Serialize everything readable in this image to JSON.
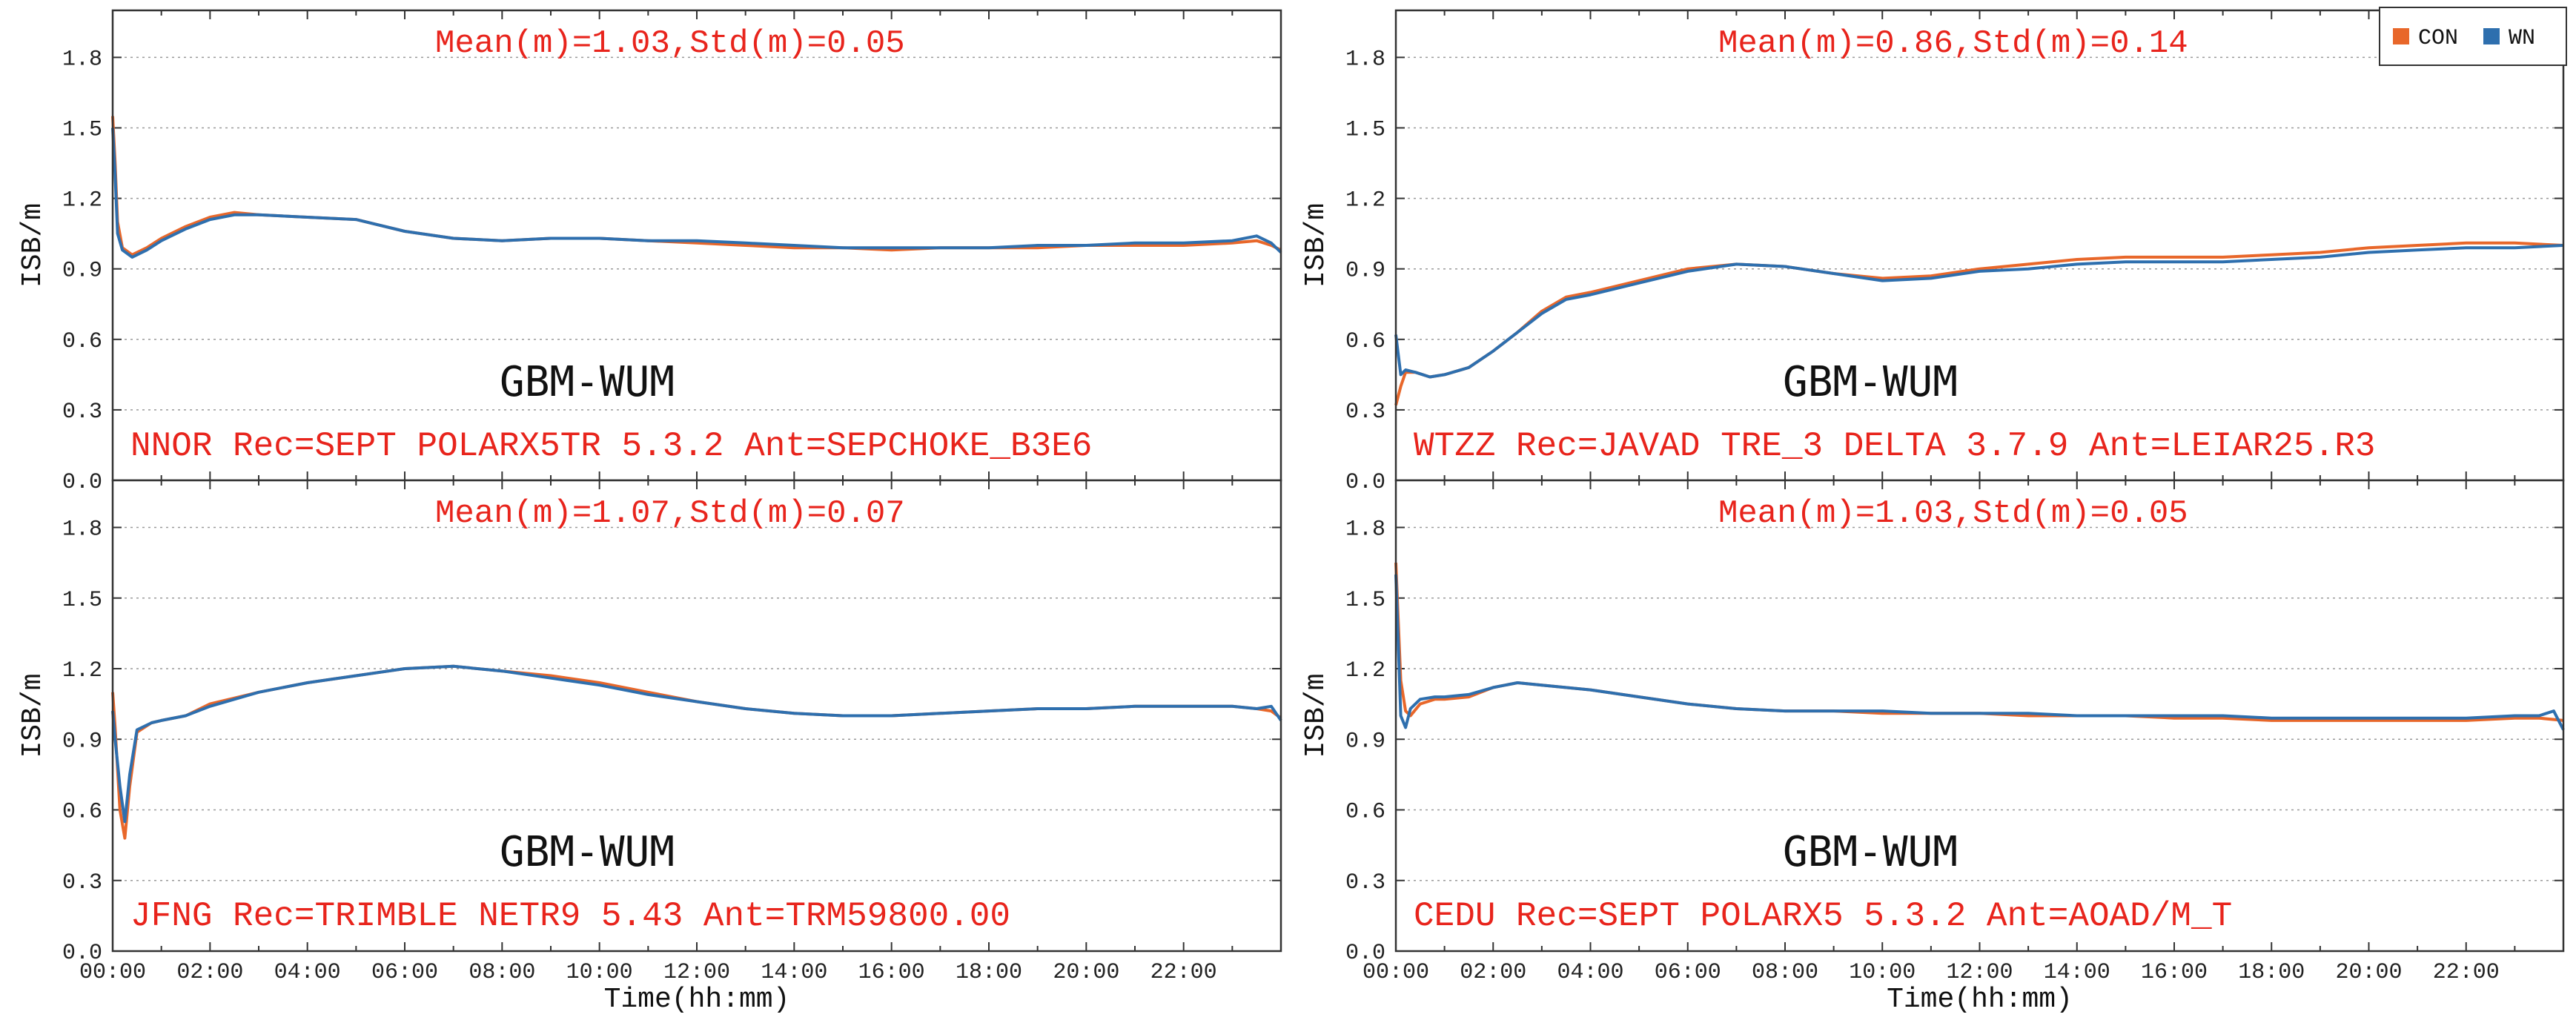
{
  "colors": {
    "con": "#e8672a",
    "wn": "#2e6fae",
    "annotation": "#e8241c"
  },
  "legend": {
    "items": [
      {
        "label": "CON",
        "color": "#e8672a"
      },
      {
        "label": "WN",
        "color": "#2e6fae"
      }
    ],
    "placement": "top-right"
  },
  "chart_data": [
    {
      "type": "line",
      "position": "top-left",
      "station": "NNOR",
      "info": "NNOR Rec=SEPT POLARX5TR 5.3.2 Ant=SEPCHOKE_B3E6",
      "stats": "Mean(m)=1.03,Std(m)=0.05",
      "name": "GBM-WUM",
      "xlabel": "",
      "ylabel": "ISB/m",
      "xlim": [
        0,
        24
      ],
      "ylim": [
        0.0,
        2.0
      ],
      "yticks": [
        "0.0",
        "0.3",
        "0.6",
        "0.9",
        "1.2",
        "1.5",
        "1.8"
      ],
      "xticks": [],
      "grid": true,
      "series": [
        {
          "name": "CON",
          "x": [
            0,
            0.05,
            0.1,
            0.2,
            0.4,
            0.7,
            1,
            1.5,
            2,
            2.5,
            3,
            4,
            5,
            6,
            7,
            8,
            9,
            10,
            11,
            12,
            13,
            14,
            15,
            16,
            17,
            18,
            19,
            20,
            21,
            22,
            23,
            23.5,
            23.8,
            24
          ],
          "y": [
            1.55,
            1.35,
            1.1,
            0.99,
            0.96,
            0.99,
            1.03,
            1.08,
            1.12,
            1.14,
            1.13,
            1.12,
            1.11,
            1.06,
            1.03,
            1.02,
            1.03,
            1.03,
            1.02,
            1.01,
            1.0,
            0.99,
            0.99,
            0.98,
            0.99,
            0.99,
            0.99,
            1.0,
            1.0,
            1.0,
            1.01,
            1.02,
            1.0,
            0.98
          ]
        },
        {
          "name": "WN",
          "x": [
            0,
            0.05,
            0.1,
            0.2,
            0.4,
            0.7,
            1,
            1.5,
            2,
            2.5,
            3,
            4,
            5,
            6,
            7,
            8,
            9,
            10,
            11,
            12,
            13,
            14,
            15,
            16,
            17,
            18,
            19,
            20,
            21,
            22,
            23,
            23.5,
            23.8,
            24
          ],
          "y": [
            1.5,
            1.3,
            1.05,
            0.98,
            0.95,
            0.98,
            1.02,
            1.07,
            1.11,
            1.13,
            1.13,
            1.12,
            1.11,
            1.06,
            1.03,
            1.02,
            1.03,
            1.03,
            1.02,
            1.02,
            1.01,
            1.0,
            0.99,
            0.99,
            0.99,
            0.99,
            1.0,
            1.0,
            1.01,
            1.01,
            1.02,
            1.04,
            1.01,
            0.97
          ]
        }
      ]
    },
    {
      "type": "line",
      "position": "top-right",
      "station": "WTZZ",
      "info": "WTZZ Rec=JAVAD TRE_3 DELTA 3.7.9 Ant=LEIAR25.R3",
      "stats": "Mean(m)=0.86,Std(m)=0.14",
      "name": "GBM-WUM",
      "xlabel": "",
      "ylabel": "ISB/m",
      "xlim": [
        0,
        24
      ],
      "ylim": [
        0.0,
        2.0
      ],
      "yticks": [
        "0.0",
        "0.3",
        "0.6",
        "0.9",
        "1.2",
        "1.5",
        "1.8"
      ],
      "xticks": [],
      "grid": true,
      "series": [
        {
          "name": "CON",
          "x": [
            0,
            0.1,
            0.2,
            0.4,
            0.7,
            1,
            1.5,
            2,
            2.5,
            3,
            3.5,
            4,
            5,
            6,
            7,
            8,
            9,
            10,
            11,
            12,
            13,
            14,
            15,
            16,
            17,
            18,
            19,
            20,
            21,
            22,
            23,
            24
          ],
          "y": [
            0.32,
            0.4,
            0.46,
            0.46,
            0.44,
            0.45,
            0.48,
            0.55,
            0.63,
            0.72,
            0.78,
            0.8,
            0.85,
            0.9,
            0.92,
            0.91,
            0.88,
            0.86,
            0.87,
            0.9,
            0.92,
            0.94,
            0.95,
            0.95,
            0.95,
            0.96,
            0.97,
            0.99,
            1.0,
            1.01,
            1.01,
            1.0
          ]
        },
        {
          "name": "WN",
          "x": [
            0,
            0.1,
            0.2,
            0.4,
            0.7,
            1,
            1.5,
            2,
            2.5,
            3,
            3.5,
            4,
            5,
            6,
            7,
            8,
            9,
            10,
            11,
            12,
            13,
            14,
            15,
            16,
            17,
            18,
            19,
            20,
            21,
            22,
            23,
            24
          ],
          "y": [
            0.62,
            0.45,
            0.47,
            0.46,
            0.44,
            0.45,
            0.48,
            0.55,
            0.63,
            0.71,
            0.77,
            0.79,
            0.84,
            0.89,
            0.92,
            0.91,
            0.88,
            0.85,
            0.86,
            0.89,
            0.9,
            0.92,
            0.93,
            0.93,
            0.93,
            0.94,
            0.95,
            0.97,
            0.98,
            0.99,
            0.99,
            1.0
          ]
        }
      ]
    },
    {
      "type": "line",
      "position": "bottom-left",
      "station": "JFNG",
      "info": "JFNG Rec=TRIMBLE NETR9 5.43 Ant=TRM59800.00",
      "stats": "Mean(m)=1.07,Std(m)=0.07",
      "name": "GBM-WUM",
      "xlabel": "Time(hh:mm)",
      "ylabel": "ISB/m",
      "xlim": [
        0,
        24
      ],
      "ylim": [
        0.0,
        2.0
      ],
      "yticks": [
        "0.0",
        "0.3",
        "0.6",
        "0.9",
        "1.2",
        "1.5",
        "1.8"
      ],
      "xticks": [
        "00:00",
        "02:00",
        "04:00",
        "06:00",
        "08:00",
        "10:00",
        "12:00",
        "14:00",
        "16:00",
        "18:00",
        "20:00",
        "22:00"
      ],
      "grid": true,
      "series": [
        {
          "name": "CON",
          "x": [
            0,
            0.05,
            0.15,
            0.25,
            0.35,
            0.5,
            0.8,
            1,
            1.5,
            2,
            3,
            4,
            5,
            6,
            7,
            8,
            9,
            10,
            11,
            12,
            13,
            14,
            15,
            16,
            17,
            18,
            19,
            20,
            21,
            22,
            23,
            23.5,
            23.8,
            24
          ],
          "y": [
            1.1,
            0.95,
            0.6,
            0.48,
            0.7,
            0.93,
            0.97,
            0.98,
            1.0,
            1.05,
            1.1,
            1.14,
            1.17,
            1.2,
            1.21,
            1.19,
            1.17,
            1.14,
            1.1,
            1.06,
            1.03,
            1.01,
            1.0,
            1.0,
            1.01,
            1.02,
            1.03,
            1.03,
            1.04,
            1.04,
            1.04,
            1.03,
            1.02,
            0.99
          ]
        },
        {
          "name": "WN",
          "x": [
            0,
            0.05,
            0.15,
            0.25,
            0.35,
            0.5,
            0.8,
            1,
            1.5,
            2,
            3,
            4,
            5,
            6,
            7,
            8,
            9,
            10,
            11,
            12,
            13,
            14,
            15,
            16,
            17,
            18,
            19,
            20,
            21,
            22,
            23,
            23.5,
            23.8,
            24
          ],
          "y": [
            1.02,
            0.9,
            0.7,
            0.55,
            0.75,
            0.94,
            0.97,
            0.98,
            1.0,
            1.04,
            1.1,
            1.14,
            1.17,
            1.2,
            1.21,
            1.19,
            1.16,
            1.13,
            1.09,
            1.06,
            1.03,
            1.01,
            1.0,
            1.0,
            1.01,
            1.02,
            1.03,
            1.03,
            1.04,
            1.04,
            1.04,
            1.03,
            1.04,
            0.98
          ]
        }
      ]
    },
    {
      "type": "line",
      "position": "bottom-right",
      "station": "CEDU",
      "info": "CEDU Rec=SEPT POLARX5 5.3.2 Ant=AOAD/M_T",
      "stats": "Mean(m)=1.03,Std(m)=0.05",
      "name": "GBM-WUM",
      "xlabel": "Time(hh:mm)",
      "ylabel": "ISB/m",
      "xlim": [
        0,
        24
      ],
      "ylim": [
        0.0,
        2.0
      ],
      "yticks": [
        "0.0",
        "0.3",
        "0.6",
        "0.9",
        "1.2",
        "1.5",
        "1.8"
      ],
      "xticks": [
        "00:00",
        "02:00",
        "04:00",
        "06:00",
        "08:00",
        "10:00",
        "12:00",
        "14:00",
        "16:00",
        "18:00",
        "20:00",
        "22:00"
      ],
      "grid": true,
      "series": [
        {
          "name": "CON",
          "x": [
            0,
            0.05,
            0.1,
            0.2,
            0.3,
            0.5,
            0.8,
            1,
            1.5,
            2,
            2.5,
            3,
            4,
            5,
            6,
            7,
            8,
            9,
            10,
            11,
            12,
            13,
            14,
            15,
            16,
            17,
            18,
            19,
            20,
            21,
            22,
            23,
            23.5,
            24
          ],
          "y": [
            1.65,
            1.4,
            1.15,
            1.02,
            1.0,
            1.05,
            1.07,
            1.07,
            1.08,
            1.12,
            1.14,
            1.13,
            1.11,
            1.08,
            1.05,
            1.03,
            1.02,
            1.02,
            1.01,
            1.01,
            1.01,
            1.0,
            1.0,
            1.0,
            0.99,
            0.99,
            0.98,
            0.98,
            0.98,
            0.98,
            0.98,
            0.99,
            0.99,
            0.98
          ]
        },
        {
          "name": "WN",
          "x": [
            0,
            0.05,
            0.1,
            0.2,
            0.3,
            0.5,
            0.8,
            1,
            1.5,
            2,
            2.5,
            3,
            4,
            5,
            6,
            7,
            8,
            9,
            10,
            11,
            12,
            13,
            14,
            15,
            16,
            17,
            18,
            19,
            20,
            21,
            22,
            23,
            23.5,
            23.8,
            24
          ],
          "y": [
            1.6,
            1.3,
            1.0,
            0.95,
            1.03,
            1.07,
            1.08,
            1.08,
            1.09,
            1.12,
            1.14,
            1.13,
            1.11,
            1.08,
            1.05,
            1.03,
            1.02,
            1.02,
            1.02,
            1.01,
            1.01,
            1.01,
            1.0,
            1.0,
            1.0,
            1.0,
            0.99,
            0.99,
            0.99,
            0.99,
            0.99,
            1.0,
            1.0,
            1.02,
            0.94
          ]
        }
      ]
    }
  ]
}
